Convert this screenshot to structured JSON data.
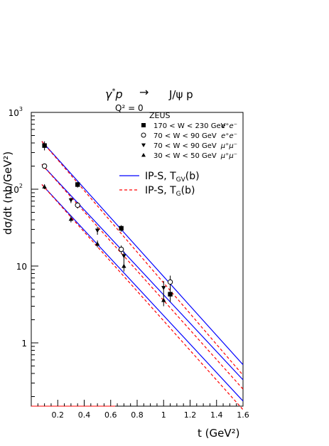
{
  "chart_data": {
    "type": "scatter",
    "title": {
      "base": "γ",
      "sup": "*",
      "rest": "p",
      "arrow": "→",
      "product": "J/ψ p",
      "subtitle": "Q² = 0"
    },
    "xlabel": "t  (GeV²)",
    "ylabel": "dσ/dt  (nb/GeV²)",
    "xlim": [
      0.0,
      1.6
    ],
    "ylim": [
      0.15,
      1000
    ],
    "yscale": "log",
    "grid": false,
    "legend_placement": "top-right",
    "x_ticks": [
      {
        "value": 0.2,
        "label": "0.2"
      },
      {
        "value": 0.4,
        "label": "0.4"
      },
      {
        "value": 0.6,
        "label": "0.6"
      },
      {
        "value": 0.8,
        "label": "0.8"
      },
      {
        "value": 1.0,
        "label": "1"
      },
      {
        "value": 1.2,
        "label": "1.2"
      },
      {
        "value": 1.4,
        "label": "1.4"
      },
      {
        "value": 1.6,
        "label": "1.6"
      }
    ],
    "y_ticks": [
      {
        "value": 1,
        "label": "1"
      },
      {
        "value": 10,
        "label": "10"
      },
      {
        "value": 100,
        "label": "10",
        "sup": "2"
      },
      {
        "value": 1000,
        "label": "10",
        "sup": "3"
      }
    ],
    "legend_header": "ZEUS",
    "data_series": [
      {
        "name": "170 < W < 230 GeV",
        "channel": "e⁺e⁻",
        "marker": "square-filled",
        "points": [
          {
            "x": 0.1,
            "y": 370,
            "err": 50
          },
          {
            "x": 0.35,
            "y": 115,
            "err": 10
          },
          {
            "x": 0.68,
            "y": 31,
            "err": 3
          },
          {
            "x": 1.05,
            "y": 4.3,
            "err": 0.9
          }
        ]
      },
      {
        "name": "70 < W < 90 GeV",
        "channel": "e⁺e⁻",
        "marker": "circle-open",
        "points": [
          {
            "x": 0.1,
            "y": 200,
            "err": 15
          },
          {
            "x": 0.35,
            "y": 62,
            "err": 6
          },
          {
            "x": 0.68,
            "y": 16.5,
            "err": 2
          },
          {
            "x": 1.05,
            "y": 6.2,
            "err": 1.3
          }
        ]
      },
      {
        "name": "70 < W < 90 GeV",
        "channel": "μ⁺μ⁻",
        "marker": "triangle-down-filled",
        "points": [
          {
            "x": 0.3,
            "y": 72,
            "err": 6
          },
          {
            "x": 0.5,
            "y": 29,
            "err": 3.5
          },
          {
            "x": 0.7,
            "y": 13.5,
            "err": 2
          },
          {
            "x": 1.0,
            "y": 5.2,
            "err": 1.2
          }
        ]
      },
      {
        "name": "30 < W < 50 GeV",
        "channel": "μ⁺μ⁻",
        "marker": "triangle-up-filled",
        "points": [
          {
            "x": 0.1,
            "y": 108,
            "err": 8
          },
          {
            "x": 0.3,
            "y": 41,
            "err": 4
          },
          {
            "x": 0.5,
            "y": 19.5,
            "err": 2
          },
          {
            "x": 0.7,
            "y": 10,
            "err": 1.5
          },
          {
            "x": 1.0,
            "y": 3.6,
            "err": 0.6
          }
        ]
      }
    ],
    "models": [
      {
        "name": "IP-S, T",
        "sub": "GV",
        "suffix": "(b)",
        "color": "#0000ff",
        "style": "solid",
        "curves": [
          {
            "x": [
              0.08,
              1.6
            ],
            "y": [
              420,
              0.52
            ]
          },
          {
            "x": [
              0.08,
              1.6
            ],
            "y": [
              210,
              0.33
            ]
          },
          {
            "x": [
              0.08,
              1.6
            ],
            "y": [
              115,
              0.175
            ]
          }
        ]
      },
      {
        "name": "IP-S, T",
        "sub": "G",
        "suffix": "(b)",
        "color": "#ff0000",
        "style": "dashed",
        "curves": [
          {
            "x": [
              0.08,
              1.6
            ],
            "y": [
              420,
              0.38
            ]
          },
          {
            "x": [
              0.08,
              1.6
            ],
            "y": [
              210,
              0.25
            ]
          },
          {
            "x": [
              0.08,
              1.6
            ],
            "y": [
              115,
              0.135
            ]
          }
        ]
      }
    ]
  }
}
